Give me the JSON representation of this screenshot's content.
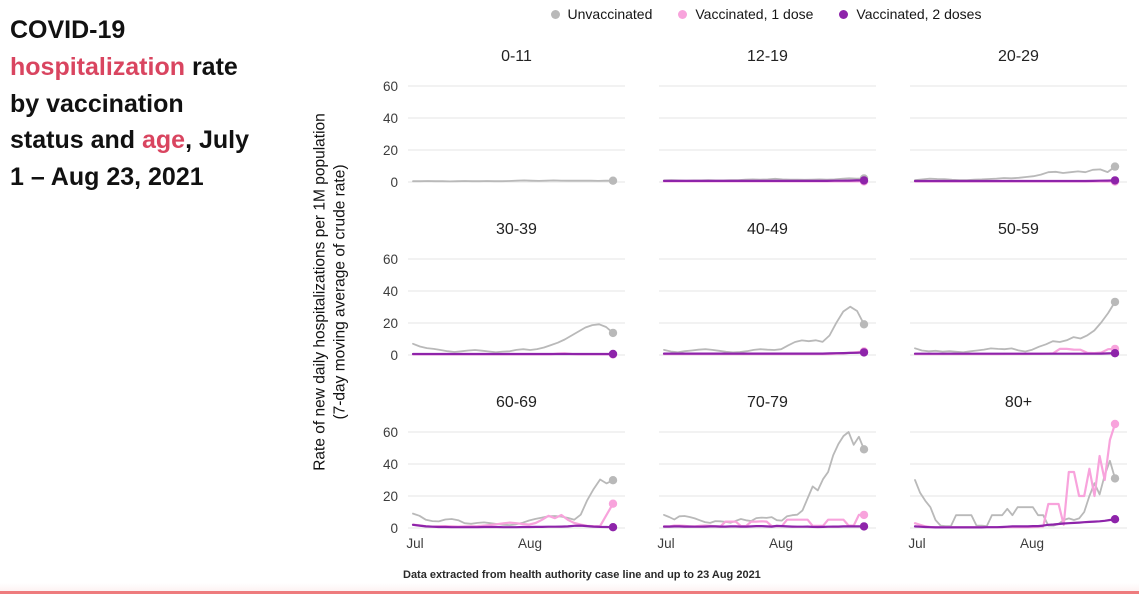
{
  "header": {
    "title_segments": [
      {
        "text": "COVID-19 ",
        "accent": false
      },
      {
        "text": "hospitalization",
        "accent": true
      },
      {
        "text": " rate by vaccination status and ",
        "accent": false
      },
      {
        "text": "age",
        "accent": true
      },
      {
        "text": ", July 1 – Aug 23, 2021",
        "accent": false
      }
    ]
  },
  "footer": {
    "note": "Data extracted from health authority case line and up to 23 Aug 2021"
  },
  "colors": {
    "accent_red": "#d94560",
    "bottom_bar": "#ee7b7d",
    "grid_line": "#e4e4e4",
    "axis_text": "#444444",
    "unvaccinated": "#b9b9b9",
    "one_dose": "#f8a3dc",
    "two_doses": "#8e24aa"
  },
  "chart_data": {
    "type": "line",
    "facet_by": "age group",
    "x": {
      "ticks": [
        "Jul",
        "Aug"
      ],
      "domain": "Jul 1 - Aug 23 (54 days)",
      "aug_position_frac": 0.585
    },
    "y": {
      "ticks": [
        0,
        20,
        40,
        60
      ],
      "ylim": [
        0,
        67
      ],
      "label": "Rate of new daily hospitalizations per 1M population",
      "label2": "(7-day moving average of crude rate)"
    },
    "series_meta": [
      {
        "key": "unvaccinated",
        "name": "Unvaccinated",
        "color": "#b9b9b9"
      },
      {
        "key": "one_dose",
        "name": "Vaccinated, 1 dose",
        "color": "#f8a3dc"
      },
      {
        "key": "two_doses",
        "name": "Vaccinated, 2 doses",
        "color": "#8e24aa"
      }
    ],
    "facets": [
      {
        "label": "0-11",
        "show_y_labels": true,
        "show_x_labels": false,
        "series": {
          "unvaccinated": [
            0.5,
            0.5,
            0.6,
            0.5,
            0.5,
            0.4,
            0.5,
            0.6,
            0.5,
            0.5,
            0.6,
            0.5,
            0.5,
            0.6,
            0.9,
            1.0,
            0.8,
            0.7,
            0.9,
            1.0,
            0.9,
            0.8,
            0.9,
            0.8,
            0.8,
            0.7,
            0.8,
            0.8
          ],
          "one_dose": null,
          "two_doses": null
        }
      },
      {
        "label": "12-19",
        "show_y_labels": false,
        "show_x_labels": false,
        "series": {
          "unvaccinated": [
            1.0,
            1.1,
            1.0,
            0.9,
            1.0,
            1.0,
            1.1,
            1.0,
            1.0,
            1.1,
            1.2,
            1.5,
            1.6,
            1.5,
            1.6,
            2.0,
            1.6,
            1.5,
            1.5,
            1.4,
            1.5,
            1.6,
            1.5,
            1.6,
            2.0,
            2.3,
            2.1,
            2.2
          ],
          "one_dose": [
            0.4,
            0.4,
            0.4,
            0.4,
            0.4,
            0.4,
            0.4,
            0.4,
            0.4,
            0.4,
            0.4,
            0.4,
            0.4,
            0.4,
            0.4,
            0.4,
            0.4,
            0.4,
            0.4,
            0.4,
            0.4,
            0.4,
            0.4,
            0.4,
            0.4,
            0.4,
            0.4,
            0.4
          ],
          "two_doses": [
            0.7,
            0.7,
            0.7,
            0.7,
            0.7,
            0.7,
            0.7,
            0.7,
            0.7,
            0.7,
            0.7,
            0.7,
            0.7,
            0.7,
            0.7,
            0.7,
            0.7,
            0.7,
            0.7,
            0.7,
            0.7,
            0.7,
            0.7,
            0.8,
            0.8,
            0.9,
            1.0,
            1.0
          ]
        }
      },
      {
        "label": "20-29",
        "show_y_labels": false,
        "show_x_labels": false,
        "series": {
          "unvaccinated": [
            1.2,
            1.6,
            2.1,
            1.9,
            1.8,
            1.4,
            1.1,
            1.2,
            1.5,
            1.6,
            1.9,
            2.1,
            2.5,
            2.3,
            2.6,
            3.1,
            3.6,
            4.6,
            6.1,
            6.4,
            5.6,
            6.1,
            6.6,
            6.1,
            7.6,
            7.9,
            6.2,
            9.6
          ],
          "one_dose": [
            0.3,
            0.3,
            0.3,
            0.3,
            0.3,
            0.3,
            0.3,
            0.3,
            0.3,
            0.3,
            0.3,
            0.3,
            0.3,
            0.3,
            0.3,
            0.3,
            0.3,
            0.3,
            0.3,
            0.3,
            0.3,
            0.3,
            0.3,
            0.3,
            0.3,
            0.3,
            0.3,
            0.3
          ],
          "two_doses": [
            0.6,
            0.6,
            0.6,
            0.6,
            0.6,
            0.6,
            0.6,
            0.6,
            0.6,
            0.6,
            0.6,
            0.6,
            0.6,
            0.6,
            0.6,
            0.6,
            0.6,
            0.6,
            0.6,
            0.6,
            0.6,
            0.6,
            0.6,
            0.6,
            0.7,
            0.8,
            0.9,
            1.0
          ]
        }
      },
      {
        "label": "30-39",
        "show_y_labels": true,
        "show_x_labels": false,
        "series": {
          "unvaccinated": [
            7.0,
            5.3,
            4.3,
            3.8,
            3.1,
            2.4,
            1.9,
            2.3,
            2.8,
            3.1,
            2.7,
            2.2,
            1.7,
            2.1,
            2.3,
            3.2,
            3.6,
            3.1,
            3.7,
            4.7,
            6.2,
            7.7,
            9.7,
            12.2,
            14.7,
            17.2,
            18.7,
            19.2,
            17.5,
            13.8
          ],
          "one_dose": [
            0.4,
            0.4,
            0.4,
            0.4,
            0.4,
            0.4,
            0.4,
            0.4,
            0.4,
            0.4,
            0.4,
            0.4,
            0.4,
            0.4,
            0.4,
            0.4,
            0.4,
            0.4,
            0.4,
            0.4,
            0.4,
            0.9,
            1.0,
            0.6,
            0.4,
            0.4,
            0.4,
            0.4,
            0.4,
            0.4
          ],
          "two_doses": [
            0.6,
            0.6,
            0.6,
            0.6,
            0.6,
            0.6,
            0.6,
            0.6,
            0.6,
            0.6,
            0.6,
            0.6,
            0.6,
            0.6,
            0.6,
            0.6,
            0.6,
            0.6,
            0.6,
            0.6,
            0.6,
            0.6,
            0.6,
            0.6,
            0.6,
            0.6,
            0.6,
            0.6,
            0.6,
            0.6
          ]
        }
      },
      {
        "label": "40-49",
        "show_y_labels": false,
        "show_x_labels": false,
        "series": {
          "unvaccinated": [
            3.2,
            2.2,
            1.7,
            2.4,
            2.8,
            3.3,
            3.6,
            3.2,
            2.6,
            2.0,
            1.6,
            1.9,
            2.4,
            3.2,
            3.6,
            3.3,
            3.1,
            3.6,
            6.0,
            8.1,
            9.1,
            8.6,
            9.2,
            8.2,
            12.2,
            20.2,
            27.2,
            30.2,
            27.5,
            19.2
          ],
          "one_dose": [
            0.5,
            0.5,
            0.5,
            0.5,
            0.5,
            0.5,
            0.5,
            0.5,
            0.5,
            0.5,
            0.5,
            0.5,
            0.5,
            0.5,
            0.5,
            0.5,
            0.5,
            0.5,
            0.5,
            0.5,
            0.5,
            0.5,
            0.5,
            0.5,
            0.6,
            0.8,
            1.0,
            1.4,
            1.8,
            2.2
          ],
          "two_doses": [
            0.9,
            0.9,
            0.9,
            0.9,
            0.9,
            0.9,
            0.9,
            0.9,
            0.9,
            0.9,
            0.9,
            0.9,
            0.9,
            0.9,
            0.9,
            0.9,
            0.9,
            0.9,
            0.9,
            0.9,
            0.9,
            0.9,
            0.9,
            0.9,
            1.0,
            1.1,
            1.2,
            1.3,
            1.4,
            1.6
          ]
        }
      },
      {
        "label": "50-59",
        "show_y_labels": false,
        "show_x_labels": false,
        "series": {
          "unvaccinated": [
            4.2,
            2.8,
            2.3,
            2.6,
            2.1,
            2.4,
            2.0,
            1.7,
            2.3,
            2.8,
            3.4,
            4.1,
            3.8,
            3.6,
            4.1,
            2.9,
            2.2,
            3.3,
            5.2,
            6.7,
            8.6,
            8.1,
            9.2,
            11.2,
            10.3,
            12.3,
            15.3,
            20.3,
            26.2,
            33.2
          ],
          "one_dose": [
            0.5,
            0.5,
            0.5,
            0.5,
            0.5,
            0.5,
            0.5,
            0.5,
            0.5,
            0.5,
            0.5,
            0.5,
            0.5,
            0.6,
            0.6,
            0.6,
            0.6,
            0.7,
            0.7,
            0.8,
            1.0,
            3.8,
            3.8,
            3.4,
            3.3,
            1.3,
            1.2,
            1.5,
            3.6,
            3.8
          ],
          "two_doses": [
            0.8,
            0.8,
            0.8,
            0.8,
            0.8,
            0.8,
            0.8,
            0.8,
            0.8,
            0.8,
            0.8,
            0.8,
            0.8,
            0.8,
            0.8,
            0.8,
            0.8,
            0.8,
            0.8,
            0.8,
            0.8,
            0.8,
            0.8,
            0.8,
            0.8,
            0.8,
            0.8,
            0.9,
            1.0,
            1.1
          ]
        }
      },
      {
        "label": "60-69",
        "show_y_labels": true,
        "show_x_labels": true,
        "series": {
          "unvaccinated": [
            9.0,
            7.6,
            5.1,
            4.3,
            4.1,
            5.3,
            5.6,
            4.9,
            3.0,
            2.6,
            3.2,
            3.5,
            3.0,
            2.5,
            2.0,
            1.8,
            2.3,
            3.3,
            4.7,
            5.7,
            6.5,
            7.3,
            7.5,
            7.1,
            6.3,
            5.2,
            8.3,
            17.3,
            24.3,
            30.3,
            27.9,
            29.9
          ],
          "one_dose": [
            2.1,
            1.6,
            1.1,
            0.9,
            1.1,
            1.2,
            1.0,
            0.9,
            1.0,
            1.1,
            1.2,
            1.5,
            1.9,
            2.4,
            2.9,
            3.4,
            3.0,
            2.5,
            2.1,
            3.1,
            5.1,
            7.6,
            6.1,
            8.1,
            5.1,
            3.1,
            2.1,
            1.4,
            1.1,
            1.2,
            8.2,
            15.2
          ],
          "two_doses": [
            2.0,
            1.5,
            1.0,
            0.8,
            0.6,
            0.6,
            0.5,
            0.5,
            0.5,
            0.5,
            0.5,
            0.6,
            0.6,
            0.6,
            0.5,
            0.5,
            0.5,
            0.6,
            0.6,
            0.7,
            0.7,
            0.8,
            0.8,
            0.9,
            1.0,
            1.4,
            1.5,
            1.2,
            0.9,
            0.7,
            0.6,
            0.5
          ]
        }
      },
      {
        "label": "70-79",
        "show_y_labels": false,
        "show_x_labels": true,
        "series": {
          "unvaccinated": [
            8.2,
            6.9,
            5.3,
            7.3,
            7.5,
            6.9,
            6.0,
            4.8,
            3.7,
            3.2,
            4.3,
            4.2,
            3.8,
            3.3,
            4.5,
            5.6,
            4.8,
            4.4,
            6.2,
            6.5,
            6.3,
            6.8,
            4.9,
            4.6,
            7.4,
            8.0,
            8.3,
            11.0,
            18.5,
            26.0,
            23.5,
            30.5,
            35.0,
            45.5,
            52.5,
            57.5,
            60.0,
            52.0,
            57.0,
            49.2
          ],
          "one_dose": [
            1.0,
            1.0,
            1.5,
            1.5,
            1.3,
            1.0,
            1.0,
            1.3,
            1.5,
            1.3,
            1.0,
            1.0,
            4.0,
            4.0,
            4.0,
            1.2,
            1.2,
            4.0,
            4.0,
            4.2,
            4.0,
            1.2,
            1.2,
            1.2,
            5.2,
            5.2,
            5.2,
            5.2,
            5.2,
            1.3,
            1.3,
            1.3,
            5.2,
            5.2,
            5.2,
            5.2,
            1.5,
            1.5,
            8.2,
            8.2
          ],
          "two_doses": [
            0.9,
            0.9,
            1.0,
            1.0,
            0.9,
            0.9,
            0.8,
            0.8,
            0.9,
            1.0,
            1.0,
            0.9,
            0.9,
            1.0,
            1.0,
            0.9,
            0.9,
            1.0,
            1.2,
            1.2,
            1.0,
            0.9,
            1.3,
            1.2,
            1.0,
            0.9,
            0.8,
            0.8,
            0.9,
            0.7,
            0.6,
            0.7,
            0.8,
            0.9,
            0.9,
            1.0,
            1.0,
            1.0,
            1.0,
            1.0
          ]
        }
      },
      {
        "label": "80+",
        "show_y_labels": false,
        "show_x_labels": true,
        "series": {
          "unvaccinated": [
            30,
            22,
            17,
            13,
            5,
            1.5,
            1.2,
            1.2,
            8,
            8,
            8,
            8,
            1.5,
            1.5,
            1.2,
            8,
            8,
            8,
            12,
            8,
            13,
            13,
            13,
            13,
            8,
            8,
            1.5,
            1.5,
            2.5,
            5,
            6,
            5,
            6,
            10,
            20,
            28,
            21,
            33,
            42,
            31
          ],
          "one_dose": [
            3,
            2,
            1,
            0.6,
            0.5,
            0.5,
            0.5,
            0.5,
            0.5,
            0.5,
            0.5,
            0.5,
            0.5,
            0.5,
            0.5,
            0.5,
            0.5,
            0.5,
            0.5,
            0.5,
            0.5,
            0.5,
            0.5,
            0.6,
            0.8,
            1.0,
            15,
            15,
            15,
            2,
            35,
            35,
            20,
            20,
            37,
            20,
            45,
            30,
            55,
            65
          ],
          "two_doses": [
            1.0,
            0.8,
            0.6,
            0.5,
            0.4,
            0.4,
            0.4,
            0.4,
            0.4,
            0.4,
            0.4,
            0.4,
            0.4,
            0.4,
            0.5,
            0.5,
            0.5,
            0.6,
            0.8,
            1.0,
            1.0,
            1.0,
            1.0,
            1.2,
            1.2,
            1.5,
            2.0,
            2.2,
            2.5,
            2.8,
            3.0,
            3.2,
            3.4,
            3.6,
            3.8,
            4.0,
            4.2,
            4.5,
            5.0,
            5.5
          ]
        }
      }
    ]
  }
}
